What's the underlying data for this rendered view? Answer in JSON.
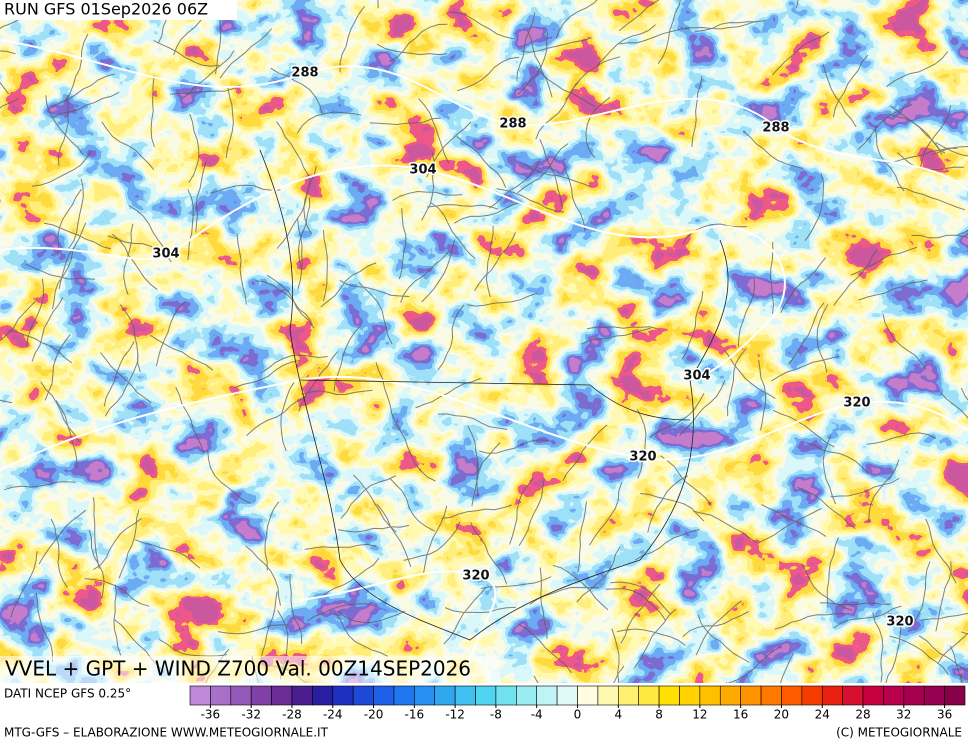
{
  "header": {
    "run": "RUN GFS 01Sep2026 06Z"
  },
  "map": {
    "contour_labels": [
      288,
      288,
      288,
      304,
      304,
      304,
      320,
      320,
      320,
      320
    ]
  },
  "caption": {
    "title": "VVEL + GPT + WIND Z700 Val. 00Z14SEP2026",
    "source": "DATI NCEP GFS 0.25°"
  },
  "colorbar": {
    "range": [
      -38,
      38
    ],
    "ticks": [
      -36,
      -32,
      -28,
      -24,
      -20,
      -16,
      -12,
      -8,
      -4,
      0,
      4,
      8,
      12,
      16,
      20,
      24,
      28,
      32,
      36
    ],
    "colors": [
      "#c088d8",
      "#a870c8",
      "#9458b8",
      "#8040a8",
      "#6c2c98",
      "#4a1e8c",
      "#2a1ea0",
      "#1e30c0",
      "#1e48d8",
      "#1e60e8",
      "#2078f0",
      "#2890f0",
      "#30a8f0",
      "#40c0f0",
      "#50d4f0",
      "#70e2f0",
      "#98ecf2",
      "#bff4f4",
      "#e0fafa",
      "#fffce0",
      "#fff8b0",
      "#fff070",
      "#ffe840",
      "#ffe000",
      "#ffd200",
      "#ffc000",
      "#ffaa00",
      "#ff9400",
      "#ff7800",
      "#ff5c00",
      "#f53c00",
      "#e82010",
      "#d81030",
      "#c80040",
      "#b8004c",
      "#a80050",
      "#980050",
      "#880048"
    ]
  },
  "footer": {
    "left": "MTG-GFS – ELABORAZIONE WWW.METEOGIORNALE.IT",
    "right": "(C) METEOGIORNALE"
  }
}
